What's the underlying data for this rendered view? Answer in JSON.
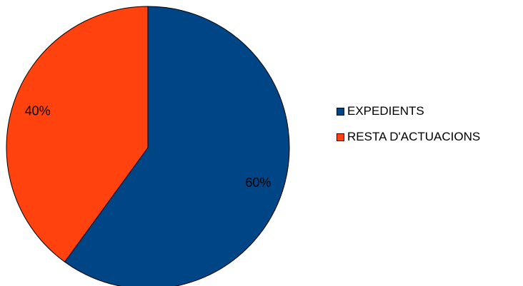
{
  "chart_data": {
    "type": "pie",
    "title": "",
    "legend_placement": "right",
    "slices": [
      {
        "name": "EXPEDIENTS",
        "value": 60,
        "label": "60%",
        "color": "#004586"
      },
      {
        "name": "RESTA D'ACTUACIONS",
        "value": 40,
        "label": "40%",
        "color": "#ff420e"
      }
    ]
  }
}
